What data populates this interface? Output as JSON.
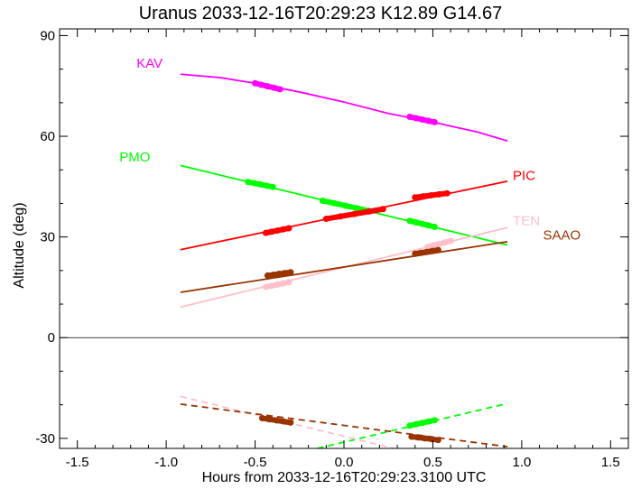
{
  "chart_data": {
    "type": "line",
    "title": "Uranus 2033-12-16T20:29:23  K12.89  G14.67",
    "xlabel": "Hours from 2033-12-16T20:29:23.3100 UTC",
    "ylabel": "Altitude (deg)",
    "xlim": [
      -1.6,
      1.6
    ],
    "ylim": [
      -33,
      92
    ],
    "xticks": [
      "-1.5",
      "-1.0",
      "-0.5",
      "0.0",
      "0.5",
      "1.0",
      "1.5"
    ],
    "xtick_values": [
      -1.5,
      -1.0,
      -0.5,
      0.0,
      0.5,
      1.0,
      1.5
    ],
    "yticks": [
      "-30",
      "0",
      "30",
      "60",
      "90"
    ],
    "ytick_values": [
      -30,
      0,
      30,
      60,
      90
    ],
    "zero_line": true,
    "series": [
      {
        "name": "KAV",
        "color": "#ff00ff",
        "label_at": [
          -1.02,
          80.5
        ],
        "x": [
          -0.92,
          -0.7,
          -0.5,
          -0.25,
          0.0,
          0.25,
          0.5,
          0.75,
          0.92
        ],
        "y": [
          78.5,
          77.5,
          75.8,
          73.2,
          70.2,
          66.8,
          64.2,
          61.3,
          58.6
        ],
        "observations": [
          {
            "x": [
              -0.5,
              -0.36
            ],
            "y": [
              75.8,
              74.0
            ]
          },
          {
            "x": [
              0.37,
              0.51
            ],
            "y": [
              65.8,
              64.2
            ]
          }
        ]
      },
      {
        "name": "PMO",
        "color": "#00ff00",
        "label_at": [
          -1.09,
          52.5
        ],
        "x": [
          -0.92,
          0.92
        ],
        "y": [
          51.3,
          27.6
        ],
        "observations": [
          {
            "x": [
              -0.54,
              -0.4
            ],
            "y": [
              46.4,
              44.9
            ]
          },
          {
            "x": [
              -0.12,
              0.14
            ],
            "y": [
              40.8,
              37.8
            ]
          },
          {
            "x": [
              0.37,
              0.51
            ],
            "y": [
              34.8,
              33.0
            ]
          }
        ]
      },
      {
        "name": "PIC",
        "color": "#ff0000",
        "label_at": [
          0.95,
          47.0
        ],
        "x": [
          -0.92,
          0.92
        ],
        "y": [
          26.2,
          46.6
        ],
        "observations": [
          {
            "x": [
              -0.44,
              -0.31
            ],
            "y": [
              31.2,
              32.6
            ]
          },
          {
            "x": [
              -0.1,
              0.22
            ],
            "y": [
              35.4,
              38.3
            ]
          },
          {
            "x": [
              0.4,
              0.58
            ],
            "y": [
              41.8,
              43.0
            ]
          }
        ]
      },
      {
        "name": "TEN",
        "color": "#ffc0cb",
        "label_at": [
          0.95,
          33.5
        ],
        "x": [
          -0.92,
          0.92
        ],
        "y": [
          9.1,
          32.8
        ],
        "observations": [
          {
            "x": [
              -0.44,
              -0.31
            ],
            "y": [
              15.1,
              16.5
            ]
          },
          {
            "x": [
              0.47,
              0.6
            ],
            "y": [
              27.0,
              28.8
            ]
          }
        ]
      },
      {
        "name": "SAAO",
        "color": "#993300",
        "label_at": [
          1.12,
          29.2
        ],
        "x": [
          -0.92,
          0.92
        ],
        "y": [
          13.5,
          28.6
        ],
        "observations": [
          {
            "x": [
              -0.43,
              -0.3
            ],
            "y": [
              18.5,
              19.5
            ]
          },
          {
            "x": [
              0.4,
              0.53
            ],
            "y": [
              25.0,
              26.1
            ]
          }
        ]
      }
    ],
    "below_horizon": [
      {
        "name": "PMO",
        "color": "#00ff00",
        "x": [
          -0.15,
          0.92
        ],
        "y": [
          -33.0,
          -19.6
        ],
        "observations": [
          {
            "x": [
              0.37,
              0.51
            ],
            "y": [
              -26.2,
              -24.6
            ]
          }
        ]
      },
      {
        "name": "TEN",
        "color": "#ffc0cb",
        "x": [
          -0.92,
          0.28
        ],
        "y": [
          -17.5,
          -33.0
        ],
        "observations": []
      },
      {
        "name": "SAAO",
        "color": "#993300",
        "x": [
          -0.92,
          0.92
        ],
        "y": [
          -19.8,
          -32.5
        ],
        "observations": [
          {
            "x": [
              -0.46,
              -0.3
            ],
            "y": [
              -24.0,
              -25.3
            ]
          },
          {
            "x": [
              0.38,
              0.53
            ],
            "y": [
              -29.5,
              -30.5
            ]
          }
        ]
      }
    ]
  }
}
